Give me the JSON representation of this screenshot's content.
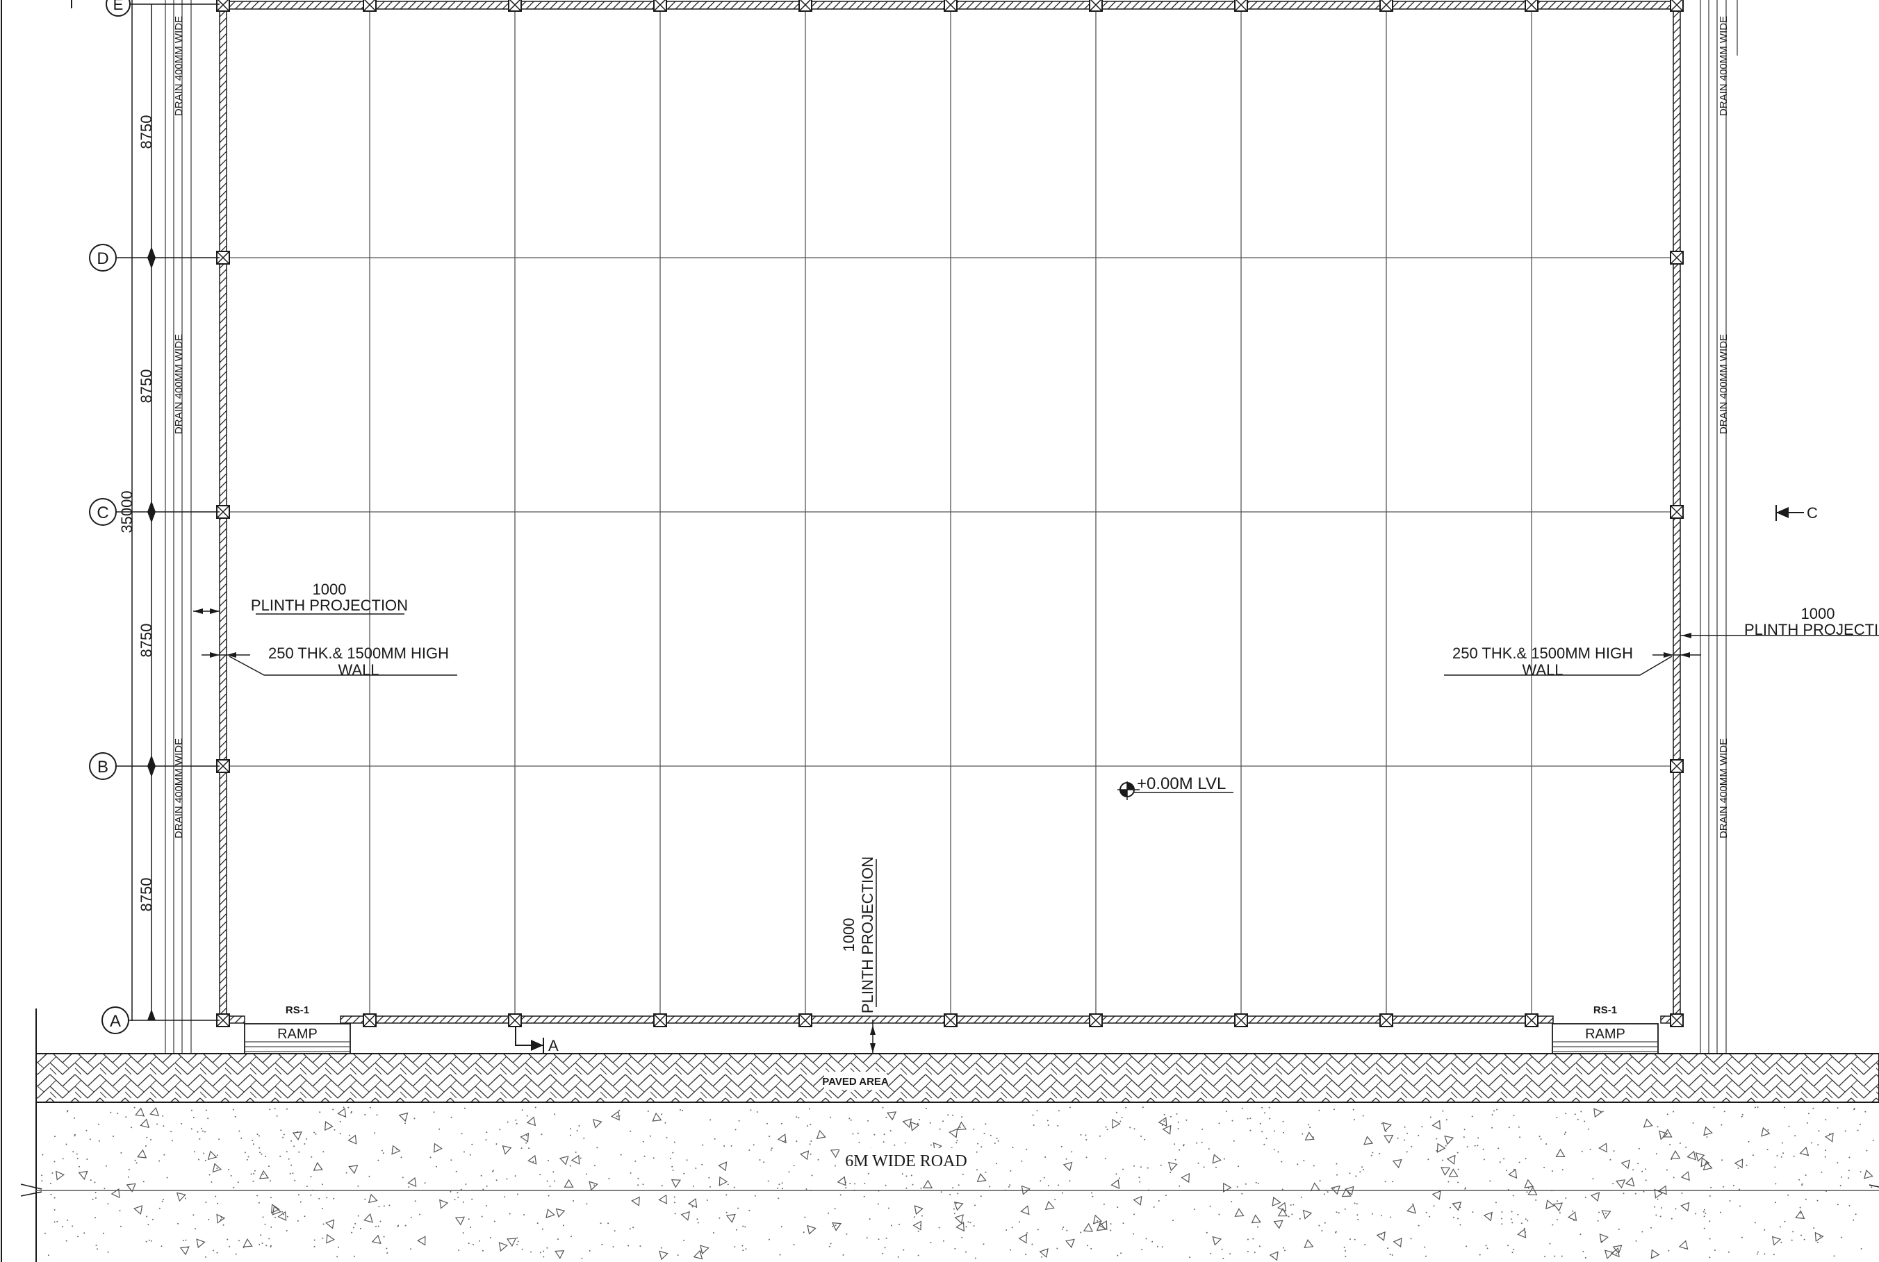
{
  "grid_labels": [
    "E",
    "D",
    "C",
    "B",
    "A"
  ],
  "dimensions": {
    "bay_values": [
      "8750",
      "8750",
      "8750",
      "8750"
    ],
    "overall": "35000"
  },
  "drain_label": "DRAIN 400MM WIDE",
  "plinth": {
    "value": "1000",
    "label": "PLINTH PROJECTION",
    "right_label": "PLINTH PROJECTIO"
  },
  "wall_note": {
    "line1": "250 THK.& 1500MM HIGH",
    "line2": "WALL"
  },
  "level": "+0.00M LVL",
  "ramp": {
    "tag": "RS-1",
    "label": "RAMP"
  },
  "section_marks": {
    "a": "A",
    "c": "C"
  },
  "paved_area": "PAVED AREA",
  "road": "6M WIDE ROAD",
  "colors": {
    "line": "#1a1a1a",
    "grid": "#555555"
  }
}
